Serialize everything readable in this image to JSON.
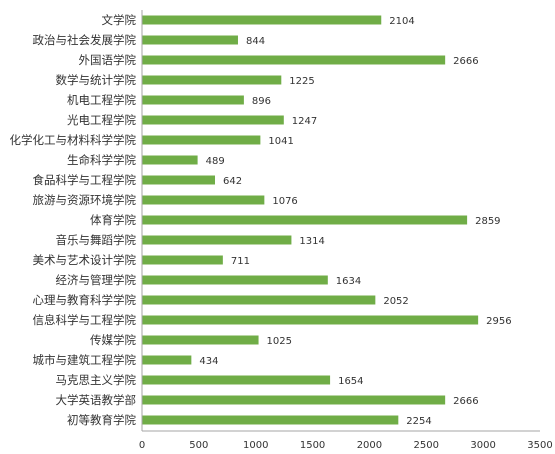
{
  "chart_data": {
    "type": "bar",
    "orientation": "horizontal",
    "categories": [
      "文学院",
      "政治与社会发展学院",
      "外国语学院",
      "数学与统计学院",
      "机电工程学院",
      "光电工程学院",
      "化学化工与材料科学学院",
      "生命科学学院",
      "食品科学与工程学院",
      "旅游与资源环境学院",
      "体育学院",
      "音乐与舞蹈学院",
      "美术与艺术设计学院",
      "经济与管理学院",
      "心理与教育科学学院",
      "信息科学与工程学院",
      "传媒学院",
      "城市与建筑工程学院",
      "马克思主义学院",
      "大学英语教学部",
      "初等教育学院"
    ],
    "values": [
      2104,
      844,
      2666,
      1225,
      896,
      1247,
      1041,
      489,
      642,
      1076,
      2859,
      1314,
      711,
      1634,
      2052,
      2956,
      1025,
      434,
      1654,
      2666,
      2254
    ],
    "value_labels": [
      "2104",
      "844",
      "2666",
      "1225",
      "896",
      "1247",
      "1041",
      "489",
      "642",
      "1076",
      "2859",
      "1314",
      "711",
      "1634",
      "2052",
      "2956",
      "1025",
      "434",
      "1654",
      "2666",
      "2254"
    ],
    "x_ticks": [
      "0",
      "500",
      "1000",
      "1500",
      "2000",
      "2500",
      "3000",
      "3500"
    ],
    "xlim": [
      0,
      3500
    ],
    "bar_color": "#70ad47",
    "grid": false,
    "legend": "none",
    "title": "",
    "xlabel": "",
    "ylabel": ""
  }
}
